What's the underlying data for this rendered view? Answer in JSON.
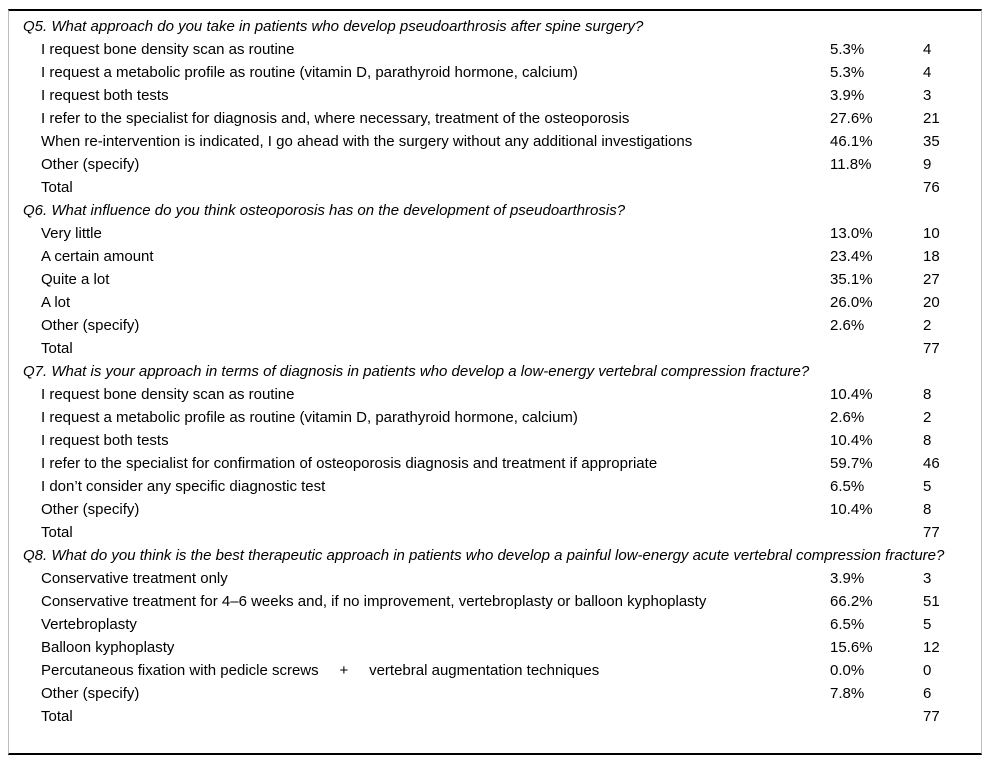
{
  "table": {
    "questions": [
      {
        "heading": "Q5. What approach do you take in patients who develop pseudoarthrosis after spine surgery?",
        "rows": [
          {
            "label": "I request bone density scan as routine",
            "percent": "5.3%",
            "count": "4"
          },
          {
            "label": "I request a metabolic profile as routine (vitamin D, parathyroid hormone, calcium)",
            "percent": "5.3%",
            "count": "4"
          },
          {
            "label": "I request both tests",
            "percent": "3.9%",
            "count": "3"
          },
          {
            "label": "I refer to the specialist for diagnosis and, where necessary, treatment of the osteoporosis",
            "percent": "27.6%",
            "count": "21"
          },
          {
            "label": "When re-intervention is indicated, I go ahead with the surgery without any additional investigations",
            "percent": "46.1%",
            "count": "35"
          },
          {
            "label": "Other (specify)",
            "percent": "11.8%",
            "count": "9"
          },
          {
            "label": "Total",
            "percent": "",
            "count": "76"
          }
        ]
      },
      {
        "heading": "Q6. What influence do you think osteoporosis has on the development of pseudoarthrosis?",
        "rows": [
          {
            "label": "Very little",
            "percent": "13.0%",
            "count": "10"
          },
          {
            "label": "A certain amount",
            "percent": "23.4%",
            "count": "18"
          },
          {
            "label": "Quite a lot",
            "percent": "35.1%",
            "count": "27"
          },
          {
            "label": "A lot",
            "percent": "26.0%",
            "count": "20"
          },
          {
            "label": "Other (specify)",
            "percent": "2.6%",
            "count": "2"
          },
          {
            "label": "Total",
            "percent": "",
            "count": "77"
          }
        ]
      },
      {
        "heading": "Q7. What is your approach in terms of diagnosis in patients who develop a low-energy vertebral compression fracture?",
        "rows": [
          {
            "label": "I request bone density scan as routine",
            "percent": "10.4%",
            "count": "8"
          },
          {
            "label": "I request a metabolic profile as routine (vitamin D, parathyroid hormone, calcium)",
            "percent": "2.6%",
            "count": "2"
          },
          {
            "label": "I request both tests",
            "percent": "10.4%",
            "count": "8"
          },
          {
            "label": "I refer to the specialist for confirmation of osteoporosis diagnosis and treatment if appropriate",
            "percent": "59.7%",
            "count": "46"
          },
          {
            "label": "I don’t consider any specific diagnostic test",
            "percent": "6.5%",
            "count": "5"
          },
          {
            "label": "Other (specify)",
            "percent": "10.4%",
            "count": "8"
          },
          {
            "label": "Total",
            "percent": "",
            "count": "77"
          }
        ]
      },
      {
        "heading": "Q8. What do you think is the best therapeutic approach in patients who develop a painful low-energy acute vertebral compression fracture?",
        "rows": [
          {
            "label": "Conservative treatment only",
            "percent": "3.9%",
            "count": "3"
          },
          {
            "label": "Conservative treatment for 4–6 weeks and, if no improvement, vertebroplasty or balloon kyphoplasty",
            "percent": "66.2%",
            "count": "51"
          },
          {
            "label": "Vertebroplasty",
            "percent": "6.5%",
            "count": "5"
          },
          {
            "label": "Balloon kyphoplasty",
            "percent": "15.6%",
            "count": "12"
          },
          {
            "label": "Percutaneous fixation with pedicle screws     +     vertebral augmentation techniques",
            "percent": "0.0%",
            "count": "0"
          },
          {
            "label": "Other (specify)",
            "percent": "7.8%",
            "count": "6"
          },
          {
            "label": "Total",
            "percent": "",
            "count": "77"
          }
        ]
      }
    ]
  }
}
